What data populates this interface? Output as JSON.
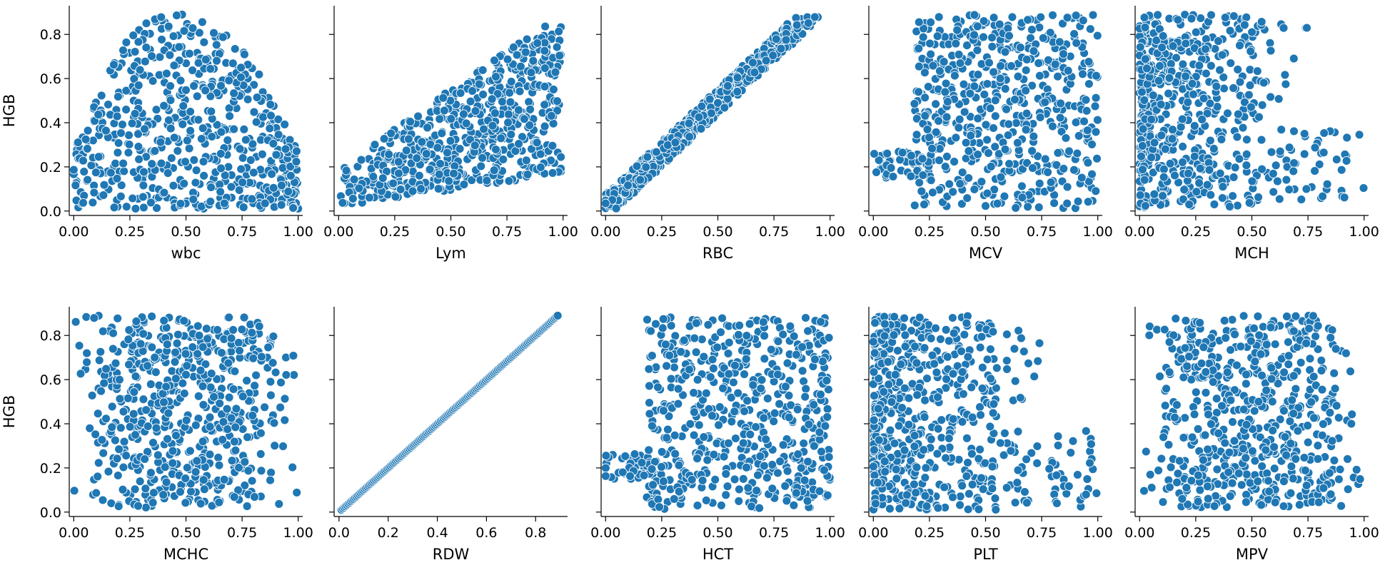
{
  "chart_data": [
    {
      "type": "scatter",
      "xlabel": "wbc",
      "ylabel": "HGB",
      "xlim": [
        -0.02,
        1.02
      ],
      "ylim": [
        -0.02,
        0.93
      ],
      "xticks": [
        "0.00",
        "0.25",
        "0.50",
        "0.75",
        "1.00"
      ],
      "yticks": [
        "0.0",
        "0.2",
        "0.4",
        "0.6",
        "0.8"
      ],
      "shape": "arch",
      "point_count": 600,
      "marker_color": "#1f77b4"
    },
    {
      "type": "scatter",
      "xlabel": "Lym",
      "ylabel": "HGB",
      "xlim": [
        -0.02,
        1.02
      ],
      "ylim": [
        -0.02,
        0.93
      ],
      "xticks": [
        "0.00",
        "0.25",
        "0.50",
        "0.75",
        "1.00"
      ],
      "yticks": [
        "0.0",
        "0.2",
        "0.4",
        "0.6",
        "0.8"
      ],
      "shape": "rising-spread",
      "point_count": 600,
      "marker_color": "#1f77b4"
    },
    {
      "type": "scatter",
      "xlabel": "RBC",
      "ylabel": "HGB",
      "xlim": [
        -0.02,
        1.02
      ],
      "ylim": [
        -0.02,
        0.93
      ],
      "xticks": [
        "0.00",
        "0.25",
        "0.50",
        "0.75",
        "1.00"
      ],
      "yticks": [
        "0.0",
        "0.2",
        "0.4",
        "0.6",
        "0.8"
      ],
      "shape": "linear-band",
      "point_count": 600,
      "marker_color": "#1f77b4"
    },
    {
      "type": "scatter",
      "xlabel": "MCV",
      "ylabel": "HGB",
      "xlim": [
        -0.02,
        1.02
      ],
      "ylim": [
        -0.02,
        0.93
      ],
      "xticks": [
        "0.00",
        "0.25",
        "0.50",
        "0.75",
        "1.00"
      ],
      "yticks": [
        "0.0",
        "0.2",
        "0.4",
        "0.6",
        "0.8"
      ],
      "shape": "wide-block",
      "point_count": 600,
      "marker_color": "#1f77b4"
    },
    {
      "type": "scatter",
      "xlabel": "MCH",
      "ylabel": "HGB",
      "xlim": [
        -0.02,
        1.02
      ],
      "ylim": [
        -0.02,
        0.93
      ],
      "xticks": [
        "0.00",
        "0.25",
        "0.50",
        "0.75",
        "1.00"
      ],
      "yticks": [
        "0.0",
        "0.2",
        "0.4",
        "0.6",
        "0.8"
      ],
      "shape": "left-skew",
      "point_count": 600,
      "marker_color": "#1f77b4"
    },
    {
      "type": "scatter",
      "xlabel": "MCHC",
      "ylabel": "HGB",
      "xlim": [
        -0.02,
        1.02
      ],
      "ylim": [
        -0.02,
        0.93
      ],
      "xticks": [
        "0.00",
        "0.25",
        "0.50",
        "0.75",
        "1.00"
      ],
      "yticks": [
        "0.0",
        "0.2",
        "0.4",
        "0.6",
        "0.8"
      ],
      "shape": "central-block",
      "point_count": 600,
      "marker_color": "#1f77b4"
    },
    {
      "type": "scatter",
      "xlabel": "RDW",
      "ylabel": "HGB",
      "xlim": [
        -0.02,
        0.93
      ],
      "ylim": [
        -0.02,
        0.93
      ],
      "xticks": [
        "0.0",
        "0.2",
        "0.4",
        "0.6",
        "0.8"
      ],
      "yticks": [
        "0.0",
        "0.2",
        "0.4",
        "0.6",
        "0.8"
      ],
      "shape": "identity-line",
      "point_count": 160,
      "marker_color": "#1f77b4"
    },
    {
      "type": "scatter",
      "xlabel": "HCT",
      "ylabel": "HGB",
      "xlim": [
        -0.02,
        1.02
      ],
      "ylim": [
        -0.02,
        0.93
      ],
      "xticks": [
        "0.00",
        "0.25",
        "0.50",
        "0.75",
        "1.00"
      ],
      "yticks": [
        "0.0",
        "0.2",
        "0.4",
        "0.6",
        "0.8"
      ],
      "shape": "wide-block",
      "point_count": 600,
      "marker_color": "#1f77b4"
    },
    {
      "type": "scatter",
      "xlabel": "PLT",
      "ylabel": "HGB",
      "xlim": [
        -0.02,
        1.02
      ],
      "ylim": [
        -0.02,
        0.93
      ],
      "xticks": [
        "0.00",
        "0.25",
        "0.50",
        "0.75",
        "1.00"
      ],
      "yticks": [
        "0.0",
        "0.2",
        "0.4",
        "0.6",
        "0.8"
      ],
      "shape": "left-skew",
      "point_count": 600,
      "marker_color": "#1f77b4"
    },
    {
      "type": "scatter",
      "xlabel": "MPV",
      "ylabel": "HGB",
      "xlim": [
        -0.02,
        1.02
      ],
      "ylim": [
        -0.02,
        0.93
      ],
      "xticks": [
        "0.00",
        "0.25",
        "0.50",
        "0.75",
        "1.00"
      ],
      "yticks": [
        "0.0",
        "0.2",
        "0.4",
        "0.6",
        "0.8"
      ],
      "shape": "central-block",
      "point_count": 600,
      "marker_color": "#1f77b4"
    }
  ]
}
